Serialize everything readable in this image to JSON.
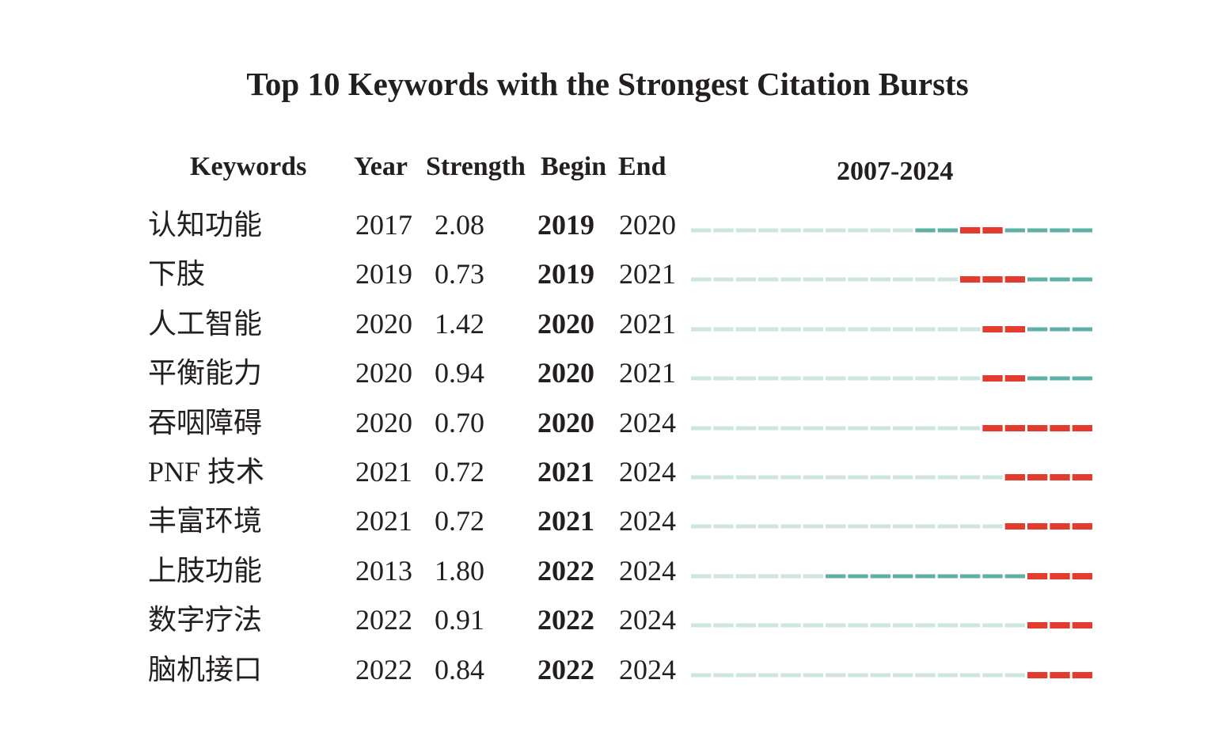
{
  "chart_data": {
    "type": "table",
    "title": "Top 10 Keywords with the Strongest Citation Bursts",
    "headers": {
      "keywords": "Keywords",
      "year": "Year",
      "strength": "Strength",
      "begin": "Begin",
      "end": "End",
      "range": "2007-2024"
    },
    "range_start": 2007,
    "range_end": 2024,
    "colors": {
      "before_appearance": "#cfe5e1",
      "active": "#5fb0a6",
      "burst": "#e33b2e"
    },
    "rows": [
      {
        "keyword": "认知功能",
        "year": "2017",
        "strength": "2.08",
        "begin": "2019",
        "end": "2020"
      },
      {
        "keyword": "下肢",
        "year": "2019",
        "strength": "0.73",
        "begin": "2019",
        "end": "2021"
      },
      {
        "keyword": "人工智能",
        "year": "2020",
        "strength": "1.42",
        "begin": "2020",
        "end": "2021"
      },
      {
        "keyword": "平衡能力",
        "year": "2020",
        "strength": "0.94",
        "begin": "2020",
        "end": "2021"
      },
      {
        "keyword": "吞咽障碍",
        "year": "2020",
        "strength": "0.70",
        "begin": "2020",
        "end": "2024"
      },
      {
        "keyword": "PNF 技术",
        "year": "2021",
        "strength": "0.72",
        "begin": "2021",
        "end": "2024"
      },
      {
        "keyword": "丰富环境",
        "year": "2021",
        "strength": "0.72",
        "begin": "2021",
        "end": "2024"
      },
      {
        "keyword": "上肢功能",
        "year": "2013",
        "strength": "1.80",
        "begin": "2022",
        "end": "2024"
      },
      {
        "keyword": "数字疗法",
        "year": "2022",
        "strength": "0.91",
        "begin": "2022",
        "end": "2024"
      },
      {
        "keyword": "脑机接口",
        "year": "2022",
        "strength": "0.84",
        "begin": "2022",
        "end": "2024"
      }
    ]
  }
}
